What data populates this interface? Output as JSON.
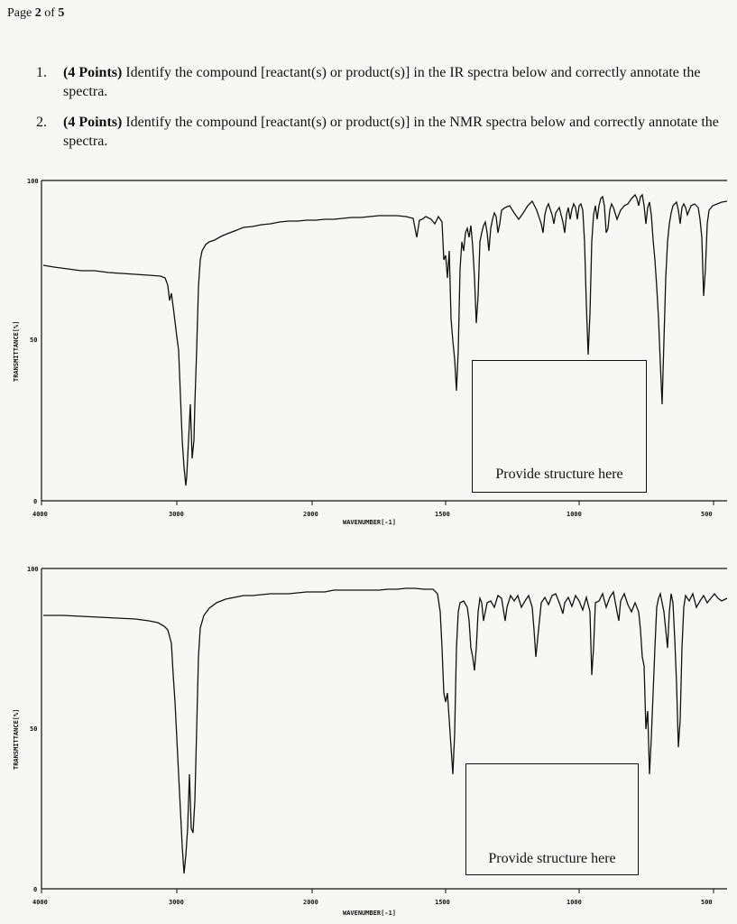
{
  "page_header": {
    "prefix": "Page ",
    "current": "2",
    "middle": " of ",
    "total": "5"
  },
  "questions": [
    {
      "number": "1.",
      "points": "(4 Points)",
      "text": " Identify the compound [reactant(s) or product(s)] in the IR spectra below and correctly annotate the spectra."
    },
    {
      "number": "2.",
      "points": "(4 Points)",
      "text": " Identify the compound [reactant(s) or product(s)] in the NMR spectra below and correctly annotate the spectra."
    }
  ],
  "spectra": [
    {
      "ylabel": "TRANSMITTANCE[%]",
      "xlabel": "WAVENUMBER[-1]",
      "y_ticks": [
        "100",
        "50",
        "0"
      ],
      "x_ticks": [
        "4000",
        "3000",
        "2000",
        "1500",
        "1000",
        "500"
      ],
      "structure_box_label": "Provide structure here"
    },
    {
      "ylabel": "TRANSMITTANCE[%]",
      "xlabel": "WAVENUMBER[-1]",
      "y_ticks": [
        "100",
        "50",
        "0"
      ],
      "x_ticks": [
        "4000",
        "3000",
        "2000",
        "1500",
        "1000",
        "500"
      ],
      "structure_box_label": "Provide structure here"
    }
  ]
}
